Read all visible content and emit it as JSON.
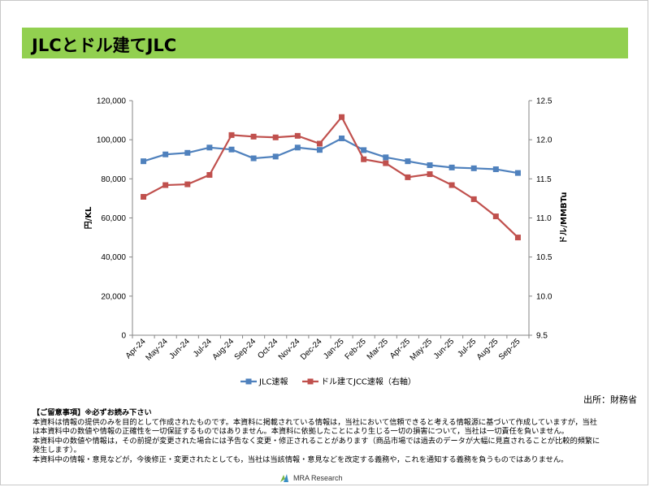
{
  "header": {
    "title": "JLCとドル建てJLC"
  },
  "chart_data": {
    "type": "line",
    "title": "",
    "categories": [
      "Apr-24",
      "May-24",
      "Jun-24",
      "Jul-24",
      "Aug-24",
      "Sep-24",
      "Oct-24",
      "Nov-24",
      "Dec-24",
      "Jan-25",
      "Feb-25",
      "Mar-25",
      "Apr-25",
      "May-25",
      "Jun-25",
      "Jul-25",
      "Aug-25",
      "Sep-25"
    ],
    "y_left": {
      "label": "円/KL",
      "min": 0,
      "max": 120000,
      "step": 20000,
      "tick_labels": [
        "0",
        "20,000",
        "40,000",
        "60,000",
        "80,000",
        "100,000",
        "120,000"
      ]
    },
    "y_right": {
      "label": "ドル/MMBTu",
      "min": 9.5,
      "max": 12.5,
      "step": 0.5,
      "tick_labels": [
        "9.5",
        "10.0",
        "10.5",
        "11.0",
        "11.5",
        "12.0",
        "12.5"
      ]
    },
    "series": [
      {
        "name": "JLC速報",
        "axis": "left",
        "color": "#4f81bd",
        "marker": "square",
        "values": [
          89000,
          92500,
          93300,
          96000,
          95000,
          90500,
          91400,
          96000,
          94800,
          100700,
          94700,
          91000,
          89000,
          87000,
          85800,
          85400,
          84900,
          83000
        ]
      },
      {
        "name": "ドル建てJCC速報（右軸）",
        "axis": "right",
        "color": "#c0504d",
        "marker": "square",
        "values": [
          11.27,
          11.42,
          11.43,
          11.55,
          12.06,
          12.04,
          12.03,
          12.05,
          11.95,
          12.29,
          11.75,
          11.7,
          11.52,
          11.56,
          11.42,
          11.24,
          11.02,
          10.75
        ]
      }
    ]
  },
  "source": "出所：財務省",
  "notes": {
    "heading": "【ご留意事項】※必ずお読み下さい",
    "lines": [
      "本資料は情報の提供のみを目的として作成されたものです。本資料に掲載されている情報は，当社において信頼できると考える情報源に基づいて作成していますが，当社",
      "は本資料中の数値や情報の正確性を一切保証するものではありません。本資料に依拠したことにより生じる一切の損害について，当社は一切責任を負いません。",
      "本資料中の数値や情報は，その前提が変更された場合には予告なく変更・修正されることがあります（商品市場では過去のデータが大幅に見直されることが比較的頻繁に",
      "発生します）。",
      "本資料中の情報・意見などが，今後修正・変更されたとしても，当社は当該情報・意見などを改定する義務や，これを通知する義務を負うものではありません。"
    ]
  },
  "logo": {
    "text": "MRA Research"
  }
}
